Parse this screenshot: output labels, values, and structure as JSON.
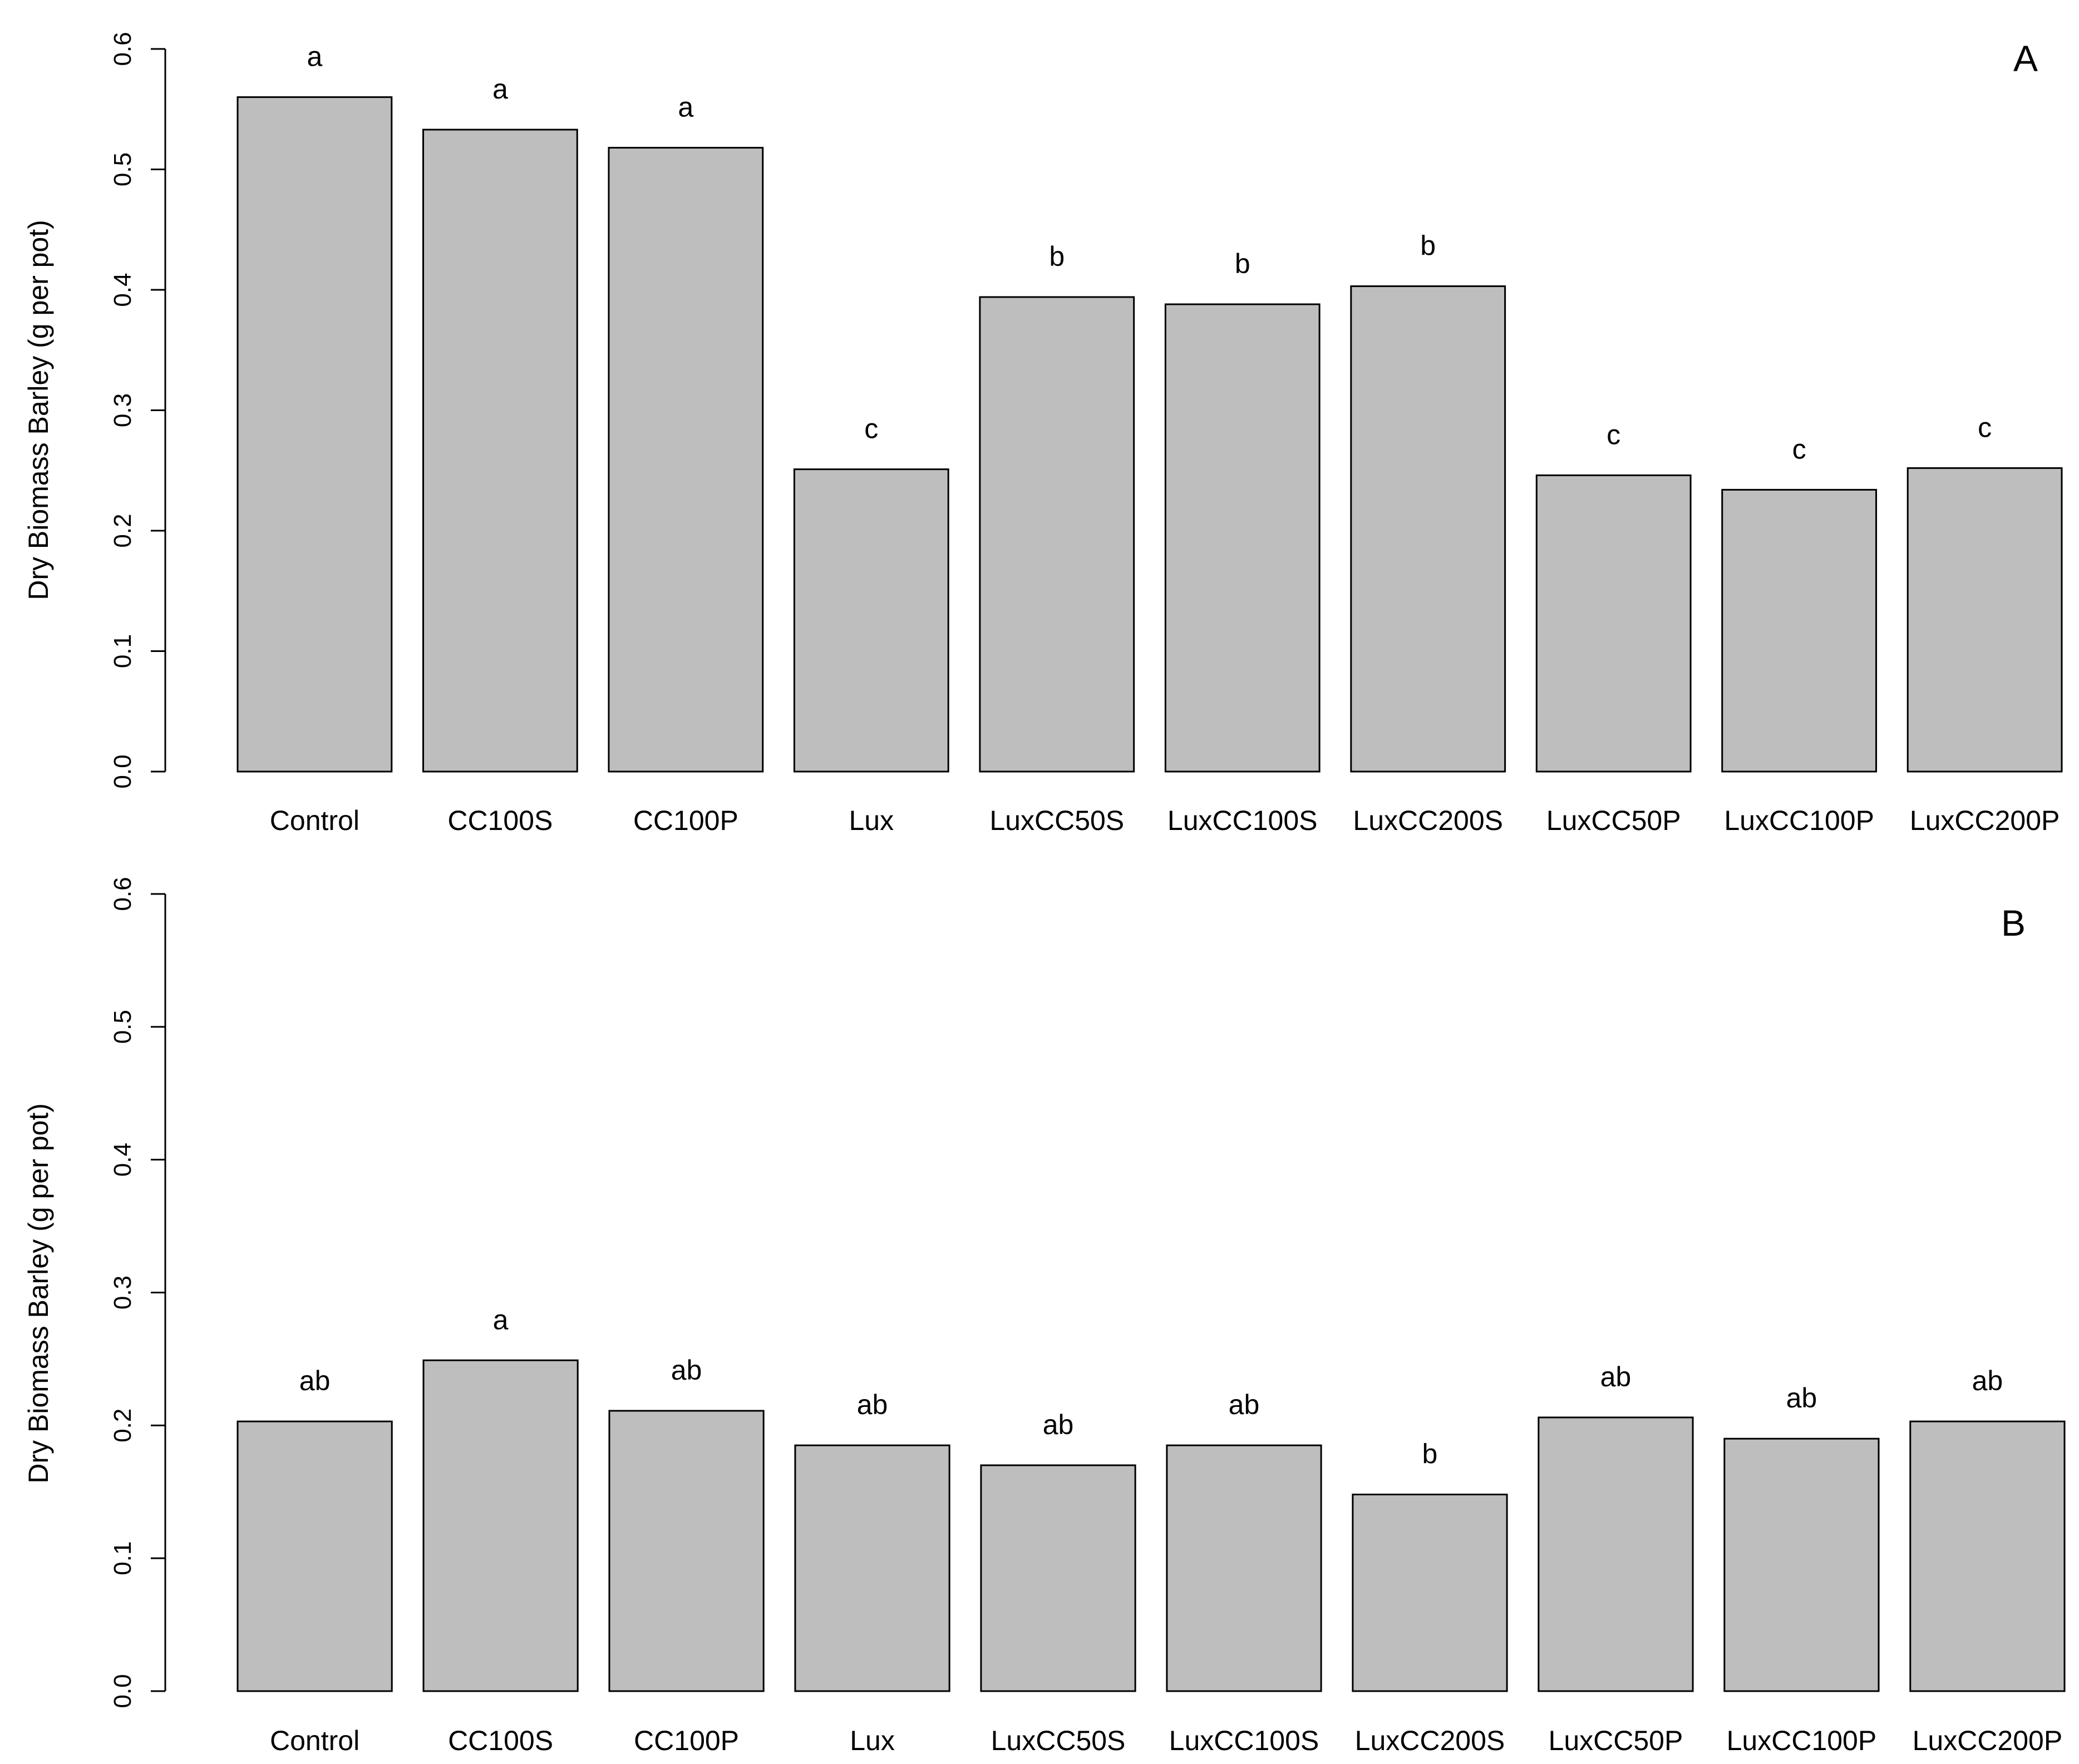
{
  "chart_data": [
    {
      "type": "bar",
      "panel_label": "A",
      "ylabel": "Dry Biomass Barley (g per pot)",
      "ylim": [
        0,
        0.6
      ],
      "yticks": [
        "0.0",
        "0.1",
        "0.2",
        "0.3",
        "0.4",
        "0.5",
        "0.6"
      ],
      "categories": [
        "Control",
        "CC100S",
        "CC100P",
        "Lux",
        "LuxCC50S",
        "LuxCC100S",
        "LuxCC200S",
        "LuxCC50P",
        "LuxCC100P",
        "LuxCC200P"
      ],
      "values": [
        0.56,
        0.533,
        0.518,
        0.251,
        0.394,
        0.388,
        0.403,
        0.246,
        0.234,
        0.252
      ],
      "letters": [
        "a",
        "a",
        "a",
        "c",
        "b",
        "b",
        "b",
        "c",
        "c",
        "c"
      ],
      "bar_color": "#bebebe",
      "grid": false
    },
    {
      "type": "bar",
      "panel_label": "B",
      "ylabel": "Dry Biomass Barley (g per pot)",
      "ylim": [
        0,
        0.6
      ],
      "yticks": [
        "0.0",
        "0.1",
        "0.2",
        "0.3",
        "0.4",
        "0.5",
        "0.6"
      ],
      "categories": [
        "Control",
        "CC100S",
        "CC100P",
        "Lux",
        "LuxCC50S",
        "LuxCC100S",
        "LuxCC200S",
        "LuxCC50P",
        "LuxCC100P",
        "LuxCC200P"
      ],
      "values": [
        0.203,
        0.249,
        0.211,
        0.185,
        0.17,
        0.185,
        0.148,
        0.206,
        0.19,
        0.203
      ],
      "letters": [
        "ab",
        "a",
        "ab",
        "ab",
        "ab",
        "ab",
        "b",
        "ab",
        "ab",
        "ab"
      ],
      "bar_color": "#bebebe",
      "grid": false
    }
  ]
}
